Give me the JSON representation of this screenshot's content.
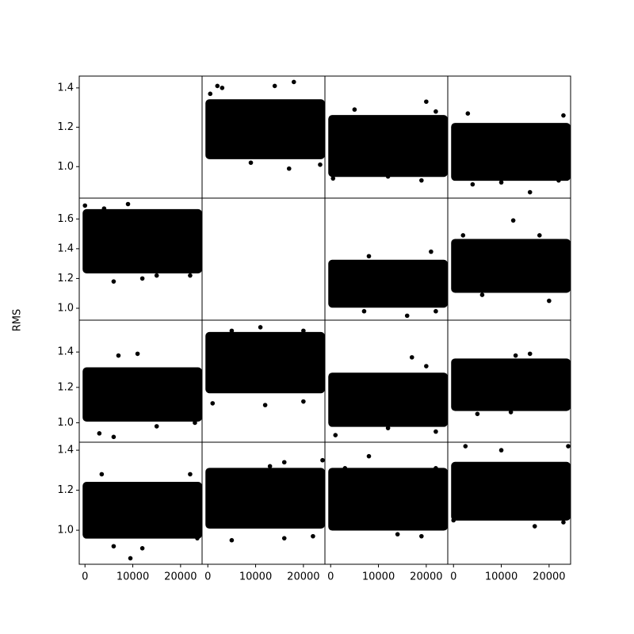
{
  "chart_data": {
    "type": "scatter",
    "ylabel": "RMS",
    "color": "#000000",
    "xlim": [
      -1200,
      24500
    ],
    "xticks": [
      0,
      10000,
      20000
    ],
    "x_span": [
      0,
      24000
    ],
    "rows": [
      {
        "ylim": [
          0.84,
          1.46
        ],
        "yticks": [
          {
            "value": 1.0,
            "label": "1.0"
          },
          1.2,
          1.4
        ],
        "panels": [
          {
            "x": [],
            "values": []
          },
          {
            "band": [
              1.05,
              1.33
            ],
            "x": [
              2000,
              3000,
              14000,
              18000,
              9000,
              17000,
              23500,
              500
            ],
            "values": [
              1.41,
              1.4,
              1.41,
              1.43,
              1.02,
              0.99,
              1.01,
              1.37
            ]
          },
          {
            "band": [
              0.96,
              1.25
            ],
            "x": [
              5000,
              20000,
              22000,
              500,
              19000,
              12000
            ],
            "values": [
              1.29,
              1.33,
              1.28,
              0.94,
              0.93,
              0.95
            ]
          },
          {
            "band": [
              0.94,
              1.21
            ],
            "x": [
              3000,
              23000,
              16000,
              4000,
              10000,
              22000
            ],
            "values": [
              1.27,
              1.26,
              0.87,
              0.91,
              0.92,
              0.93
            ]
          }
        ]
      },
      {
        "ylim": [
          0.92,
          1.74
        ],
        "yticks": [
          {
            "value": 1.0,
            "label": "1.0"
          },
          1.2,
          1.4,
          1.6
        ],
        "panels": [
          {
            "band": [
              1.25,
              1.65
            ],
            "x": [
              9000,
              0,
              4000,
              6000,
              12000,
              15000,
              22000
            ],
            "values": [
              1.7,
              1.69,
              1.67,
              1.18,
              1.2,
              1.22,
              1.22
            ]
          },
          {
            "x": [],
            "values": []
          },
          {
            "band": [
              1.02,
              1.31
            ],
            "x": [
              21000,
              8000,
              16000,
              7000,
              22000
            ],
            "values": [
              1.38,
              1.35,
              0.95,
              0.98,
              0.98
            ]
          },
          {
            "band": [
              1.12,
              1.45
            ],
            "x": [
              12500,
              2000,
              18000,
              20000,
              6000
            ],
            "values": [
              1.59,
              1.49,
              1.49,
              1.05,
              1.09
            ]
          }
        ]
      },
      {
        "ylim": [
          0.89,
          1.58
        ],
        "yticks": [
          {
            "value": 1.0,
            "label": "1.0"
          },
          1.2,
          1.4
        ],
        "panels": [
          {
            "band": [
              1.02,
              1.3
            ],
            "x": [
              7000,
              11000,
              3000,
              6000,
              15000,
              23000
            ],
            "values": [
              1.38,
              1.39,
              0.94,
              0.92,
              0.98,
              1.0
            ]
          },
          {
            "band": [
              1.18,
              1.5
            ],
            "x": [
              11000,
              5000,
              20000,
              1000,
              12000,
              20000
            ],
            "values": [
              1.54,
              1.52,
              1.52,
              1.11,
              1.1,
              1.12
            ]
          },
          {
            "band": [
              0.99,
              1.27
            ],
            "x": [
              17000,
              20000,
              1000,
              22000,
              12000
            ],
            "values": [
              1.37,
              1.32,
              0.93,
              0.95,
              0.97
            ]
          },
          {
            "band": [
              1.08,
              1.35
            ],
            "x": [
              16000,
              13000,
              5000,
              12000,
              22000
            ],
            "values": [
              1.39,
              1.38,
              1.05,
              1.06,
              1.08
            ]
          }
        ]
      },
      {
        "ylim": [
          0.83,
          1.44
        ],
        "yticks": [
          {
            "value": 1.0,
            "label": "1.0"
          },
          1.2,
          1.4
        ],
        "panels": [
          {
            "band": [
              0.97,
              1.23
            ],
            "x": [
              3500,
              9500,
              12000,
              6000,
              23500,
              22000
            ],
            "values": [
              1.28,
              0.86,
              0.91,
              0.92,
              0.96,
              1.28
            ]
          },
          {
            "band": [
              1.02,
              1.3
            ],
            "x": [
              24000,
              16000,
              13000,
              5000,
              16000,
              22000
            ],
            "values": [
              1.35,
              1.34,
              1.32,
              0.95,
              0.96,
              0.97
            ]
          },
          {
            "band": [
              1.01,
              1.3
            ],
            "x": [
              8000,
              3000,
              22000,
              19000,
              14000
            ],
            "values": [
              1.37,
              1.31,
              1.31,
              0.97,
              0.98
            ]
          },
          {
            "band": [
              1.06,
              1.33
            ],
            "x": [
              2500,
              24000,
              10000,
              0,
              17000,
              23000
            ],
            "values": [
              1.42,
              1.42,
              1.4,
              1.05,
              1.02,
              1.04
            ]
          }
        ]
      }
    ]
  }
}
